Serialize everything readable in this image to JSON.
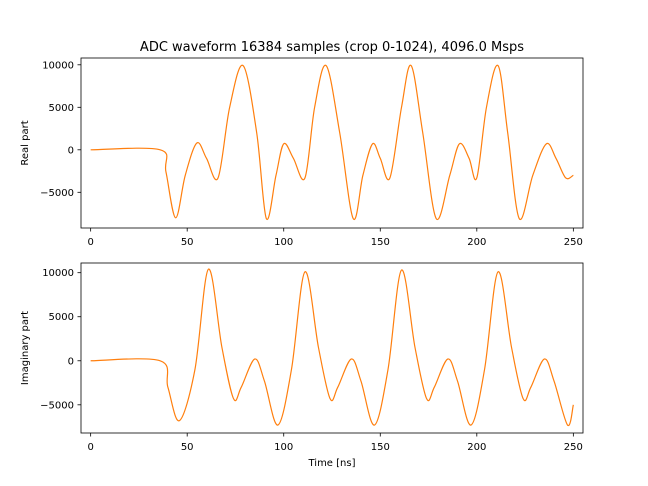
{
  "figure": {
    "title": "ADC waveform 16384 samples (crop 0-1024), 4096.0 Msps"
  },
  "colors": {
    "series": "#ff7f0e",
    "axes": "#000000",
    "background": "#ffffff"
  },
  "chart_data": [
    {
      "type": "line",
      "title": "ADC waveform 16384 samples (crop 0-1024), 4096.0 Msps",
      "xlabel": "",
      "ylabel": "Real part",
      "xlim": [
        -5,
        255
      ],
      "ylim": [
        -9200,
        10800
      ],
      "xticks": [
        0,
        50,
        100,
        150,
        200,
        250
      ],
      "yticks": [
        -5000,
        0,
        5000,
        10000
      ],
      "ytick_labels": [
        "−5000",
        "0",
        "5000",
        "10000"
      ],
      "grid": false,
      "series": [
        {
          "x": [
            0,
            36,
            39,
            44,
            49,
            55,
            60,
            66,
            72,
            79,
            86,
            91,
            96,
            100,
            105,
            111,
            116,
            122,
            129,
            136,
            141,
            146,
            150,
            155,
            161,
            166,
            172,
            179,
            186,
            191,
            196,
            200,
            205,
            211,
            216,
            222,
            229,
            236,
            241,
            246,
            250
          ],
          "y": [
            0,
            0,
            -2600,
            -8000,
            -3000,
            800,
            -1000,
            -3300,
            5000,
            9900,
            2000,
            -8100,
            -3000,
            700,
            -1000,
            -3300,
            5000,
            9900,
            2000,
            -8100,
            -3000,
            700,
            -1000,
            -3300,
            5000,
            9900,
            2000,
            -8100,
            -3000,
            700,
            -1000,
            -3300,
            5000,
            9900,
            2000,
            -8100,
            -3000,
            700,
            -1000,
            -3300,
            -3000
          ]
        }
      ]
    },
    {
      "type": "line",
      "title": "",
      "xlabel": "Time [ns]",
      "ylabel": "Imaginary part",
      "xlim": [
        -5,
        255
      ],
      "ylim": [
        -8200,
        11100
      ],
      "xticks": [
        0,
        50,
        100,
        150,
        200,
        250
      ],
      "yticks": [
        -5000,
        0,
        5000,
        10000
      ],
      "ytick_labels": [
        "−5000",
        "0",
        "5000",
        "10000"
      ],
      "grid": false,
      "series": [
        {
          "x": [
            0,
            36,
            40,
            46,
            54,
            61,
            68,
            74,
            78,
            85,
            90,
            97,
            104,
            111,
            118,
            124,
            128,
            135,
            140,
            147,
            154,
            161,
            168,
            174,
            178,
            185,
            190,
            197,
            204,
            211,
            218,
            224,
            228,
            235,
            240,
            247,
            250
          ],
          "y": [
            0,
            0,
            -3000,
            -6800,
            -1000,
            10400,
            1500,
            -4300,
            -3000,
            200,
            -2300,
            -7300,
            -1000,
            10100,
            1500,
            -4300,
            -3000,
            200,
            -2300,
            -7300,
            -1000,
            10300,
            1500,
            -4300,
            -3000,
            200,
            -2300,
            -7300,
            -1000,
            10100,
            1500,
            -4300,
            -3000,
            200,
            -2300,
            -7300,
            -5000
          ]
        }
      ]
    }
  ]
}
